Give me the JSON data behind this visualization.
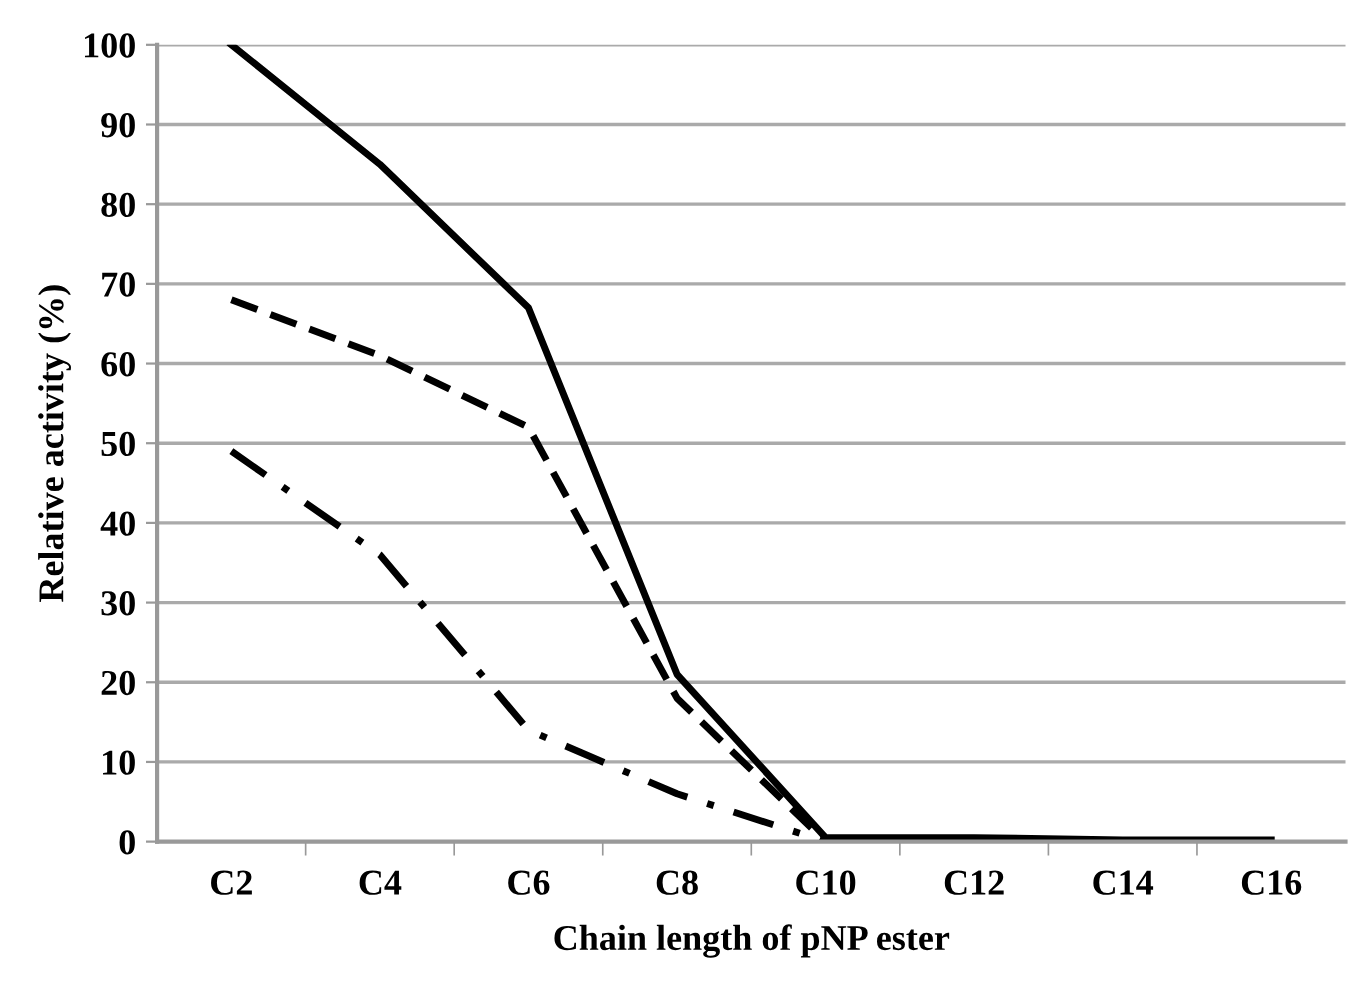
{
  "chart_data": {
    "type": "line",
    "xlabel": "Chain length of pNP ester",
    "ylabel": "Relative activity (%)",
    "categories": [
      "C2",
      "C4",
      "C6",
      "C8",
      "C10",
      "C12",
      "C14",
      "C16"
    ],
    "series": [
      {
        "color": "#000000",
        "line_style": "solid",
        "values": [
          100,
          85,
          67,
          21,
          0.5,
          0.5,
          0.2,
          0.2
        ]
      },
      {
        "color": "#000000",
        "line_style": "dashed",
        "values": [
          68,
          61,
          52,
          18,
          0,
          0,
          0,
          0
        ]
      },
      {
        "color": "#000000",
        "line_style": "dashdot",
        "values": [
          49,
          36,
          14,
          6,
          0,
          0,
          0,
          0
        ]
      }
    ],
    "ylim": [
      0,
      100
    ],
    "yticks": [
      0,
      10,
      20,
      30,
      40,
      50,
      60,
      70,
      80,
      90,
      100
    ],
    "grid": "y",
    "marker": "none"
  }
}
